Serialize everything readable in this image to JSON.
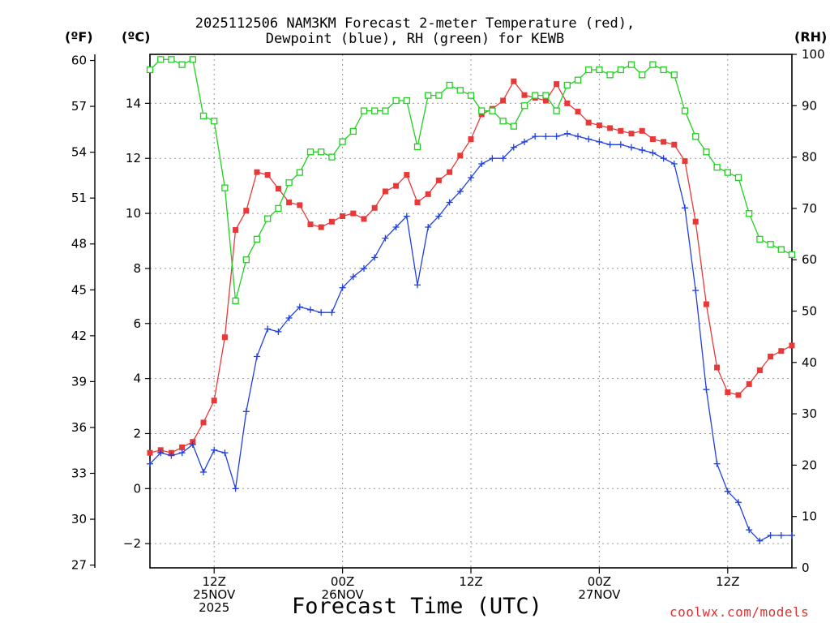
{
  "chart_data": {
    "type": "line",
    "title": [
      "2025112506 NAM3KM Forecast 2-meter Temperature (red),",
      "Dewpoint (blue), RH (green) for KEWB"
    ],
    "xlabel": "Forecast Time (UTC)",
    "units": {
      "left_f": "(ºF)",
      "left_c": "(ºC)",
      "right": "(RH)"
    },
    "credit": "coolwx.com/models",
    "x_hours": [
      0,
      1,
      2,
      3,
      4,
      5,
      6,
      7,
      8,
      9,
      10,
      11,
      12,
      13,
      14,
      15,
      16,
      17,
      18,
      19,
      20,
      21,
      22,
      23,
      24,
      25,
      26,
      27,
      28,
      29,
      30,
      31,
      32,
      33,
      34,
      35,
      36,
      37,
      38,
      39,
      40,
      41,
      42,
      43,
      44,
      45,
      46,
      47,
      48,
      49,
      50,
      51,
      52,
      53,
      54,
      55,
      56,
      57,
      58,
      59,
      60
    ],
    "xlim": [
      0,
      60
    ],
    "x_ticks": [
      {
        "hour": 6,
        "lines": [
          "12Z",
          "25NOV",
          "2025"
        ]
      },
      {
        "hour": 18,
        "lines": [
          "00Z",
          "26NOV"
        ]
      },
      {
        "hour": 30,
        "lines": [
          "12Z"
        ]
      },
      {
        "hour": 42,
        "lines": [
          "00Z",
          "27NOV"
        ]
      },
      {
        "hour": 54,
        "lines": [
          "12Z"
        ]
      }
    ],
    "c_axis": {
      "ylim": [
        -2.88,
        15.78
      ],
      "ticks": [
        -2,
        0,
        2,
        4,
        6,
        8,
        10,
        12,
        14
      ]
    },
    "f_axis": {
      "ylim": [
        26.82,
        60.4
      ],
      "ticks": [
        27,
        30,
        33,
        36,
        39,
        42,
        45,
        48,
        51,
        54,
        57,
        60
      ]
    },
    "rh_axis": {
      "ylim": [
        0,
        100
      ],
      "ticks": [
        0,
        10,
        20,
        30,
        40,
        50,
        60,
        70,
        80,
        90,
        100
      ]
    },
    "grid": true,
    "series": [
      {
        "name": "2-meter Temperature",
        "axis": "c",
        "color": "#e83838",
        "marker": "filled-square",
        "values": [
          1.3,
          1.4,
          1.3,
          1.5,
          1.7,
          2.4,
          3.2,
          5.5,
          9.4,
          10.1,
          11.5,
          11.4,
          10.9,
          10.4,
          10.3,
          9.6,
          9.5,
          9.7,
          9.9,
          10.0,
          9.8,
          10.2,
          10.8,
          11.0,
          11.4,
          10.4,
          10.7,
          11.2,
          11.5,
          12.1,
          12.7,
          13.6,
          13.8,
          14.1,
          14.8,
          14.3,
          14.2,
          14.1,
          14.7,
          14.0,
          13.7,
          13.3,
          13.2,
          13.1,
          13.0,
          12.9,
          13.0,
          12.7,
          12.6,
          12.5,
          11.9,
          9.7,
          6.7,
          4.4,
          3.5,
          3.4,
          3.8,
          4.3,
          4.8,
          5.0,
          5.2
        ]
      },
      {
        "name": "Dewpoint",
        "axis": "c",
        "color": "#2040e0",
        "marker": "plus",
        "values": [
          0.9,
          1.3,
          1.2,
          1.3,
          1.6,
          0.6,
          1.4,
          1.3,
          0.0,
          2.8,
          4.8,
          5.8,
          5.7,
          6.2,
          6.6,
          6.5,
          6.4,
          6.4,
          7.3,
          7.7,
          8.0,
          8.4,
          9.1,
          9.5,
          9.9,
          7.4,
          9.5,
          9.9,
          10.4,
          10.8,
          11.3,
          11.8,
          12.0,
          12.0,
          12.4,
          12.6,
          12.8,
          12.8,
          12.8,
          12.9,
          12.8,
          12.7,
          12.6,
          12.5,
          12.5,
          12.4,
          12.3,
          12.2,
          12.0,
          11.8,
          10.2,
          7.2,
          3.6,
          0.9,
          -0.1,
          -0.5,
          -1.5,
          -1.9,
          -1.7,
          -1.7,
          -1.7
        ]
      },
      {
        "name": "RH",
        "axis": "rh",
        "color": "#20d020",
        "marker": "open-square",
        "values": [
          97,
          99,
          99,
          98,
          99,
          88,
          87,
          74,
          52,
          60,
          64,
          68,
          70,
          75,
          77,
          81,
          81,
          80,
          83,
          85,
          89,
          89,
          89,
          91,
          91,
          82,
          92,
          92,
          94,
          93,
          92,
          89,
          89,
          87,
          86,
          90,
          92,
          92,
          89,
          94,
          95,
          97,
          97,
          96,
          97,
          98,
          96,
          98,
          97,
          96,
          89,
          84,
          81,
          78,
          77,
          76,
          69,
          64,
          63,
          62,
          61
        ]
      }
    ]
  }
}
